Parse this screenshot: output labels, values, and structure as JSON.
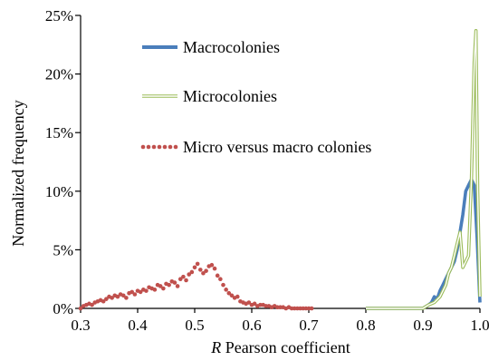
{
  "chart_data": {
    "type": "line",
    "xlabel_var": "R",
    "xlabel_rest": " Pearson coefficient",
    "ylabel": "Normalized frequency",
    "xlim": [
      0.3,
      1.0
    ],
    "ylim": [
      0,
      25
    ],
    "x_ticks": [
      "0.3",
      "0.4",
      "0.5",
      "0.6",
      "0.7",
      "0.8",
      "0.9",
      "1.0"
    ],
    "y_ticks": [
      "0%",
      "5%",
      "10%",
      "15%",
      "20%",
      "25%"
    ],
    "grid": false,
    "legend_position": "top-left",
    "series": [
      {
        "name": "Macrocolonies",
        "style": "thick-line",
        "color": "#4a7ebb",
        "x": [
          0.8,
          0.85,
          0.9,
          0.91,
          0.915,
          0.92,
          0.925,
          0.93,
          0.935,
          0.94,
          0.945,
          0.95,
          0.955,
          0.96,
          0.965,
          0.97,
          0.975,
          0.98,
          0.985,
          0.99,
          0.995,
          1.0
        ],
        "y": [
          0,
          0,
          0,
          0.3,
          0.5,
          1.0,
          0.8,
          1.5,
          2.0,
          2.5,
          3.0,
          3.5,
          4.0,
          5.0,
          6.5,
          8.0,
          10.0,
          10.5,
          11.0,
          10.5,
          6.0,
          0.5
        ]
      },
      {
        "name": "Microcolonies",
        "style": "double-line",
        "color": "#9bbb59",
        "x": [
          0.8,
          0.85,
          0.9,
          0.91,
          0.92,
          0.93,
          0.935,
          0.94,
          0.945,
          0.95,
          0.955,
          0.96,
          0.965,
          0.97,
          0.975,
          0.98,
          0.985,
          0.99,
          0.993,
          0.996,
          1.0
        ],
        "y": [
          0,
          0,
          0,
          0.3,
          0.5,
          1.0,
          1.5,
          2.0,
          3.0,
          3.5,
          4.5,
          5.5,
          6.5,
          3.5,
          4.0,
          4.5,
          11.0,
          21.0,
          23.7,
          10.0,
          1.0
        ]
      },
      {
        "name": "Micro versus macro colonies",
        "style": "dotted",
        "color": "#c0504d",
        "x": [
          0.3,
          0.305,
          0.31,
          0.315,
          0.32,
          0.325,
          0.33,
          0.335,
          0.34,
          0.345,
          0.35,
          0.355,
          0.36,
          0.365,
          0.37,
          0.375,
          0.38,
          0.385,
          0.39,
          0.395,
          0.4,
          0.405,
          0.41,
          0.415,
          0.42,
          0.425,
          0.43,
          0.435,
          0.44,
          0.445,
          0.45,
          0.455,
          0.46,
          0.465,
          0.47,
          0.475,
          0.48,
          0.485,
          0.49,
          0.495,
          0.5,
          0.505,
          0.51,
          0.515,
          0.52,
          0.525,
          0.53,
          0.535,
          0.54,
          0.545,
          0.55,
          0.555,
          0.56,
          0.565,
          0.57,
          0.575,
          0.58,
          0.585,
          0.59,
          0.595,
          0.6,
          0.605,
          0.61,
          0.615,
          0.62,
          0.625,
          0.63,
          0.635,
          0.64,
          0.645,
          0.65,
          0.655,
          0.66,
          0.665,
          0.67,
          0.675,
          0.68,
          0.685,
          0.69,
          0.695,
          0.7,
          0.705
        ],
        "y": [
          0.0,
          0.2,
          0.3,
          0.4,
          0.3,
          0.5,
          0.6,
          0.7,
          0.6,
          0.8,
          1.0,
          0.9,
          1.1,
          1.0,
          1.2,
          1.1,
          0.9,
          1.3,
          1.4,
          1.2,
          1.5,
          1.4,
          1.6,
          1.5,
          1.8,
          1.7,
          1.6,
          2.0,
          1.9,
          1.7,
          2.1,
          2.0,
          2.3,
          2.2,
          1.9,
          2.5,
          2.7,
          2.4,
          2.9,
          3.1,
          3.5,
          3.8,
          3.3,
          3.0,
          3.2,
          3.6,
          3.7,
          3.4,
          2.8,
          2.5,
          2.0,
          1.6,
          1.3,
          1.1,
          0.9,
          1.0,
          0.6,
          0.5,
          0.4,
          0.5,
          0.3,
          0.4,
          0.2,
          0.3,
          0.3,
          0.2,
          0.2,
          0.1,
          0.2,
          0.1,
          0.1,
          0.1,
          0.0,
          0.1,
          0.0,
          0.0,
          0.0,
          0.0,
          0.0,
          0.0,
          0.0,
          0.0
        ]
      }
    ]
  }
}
